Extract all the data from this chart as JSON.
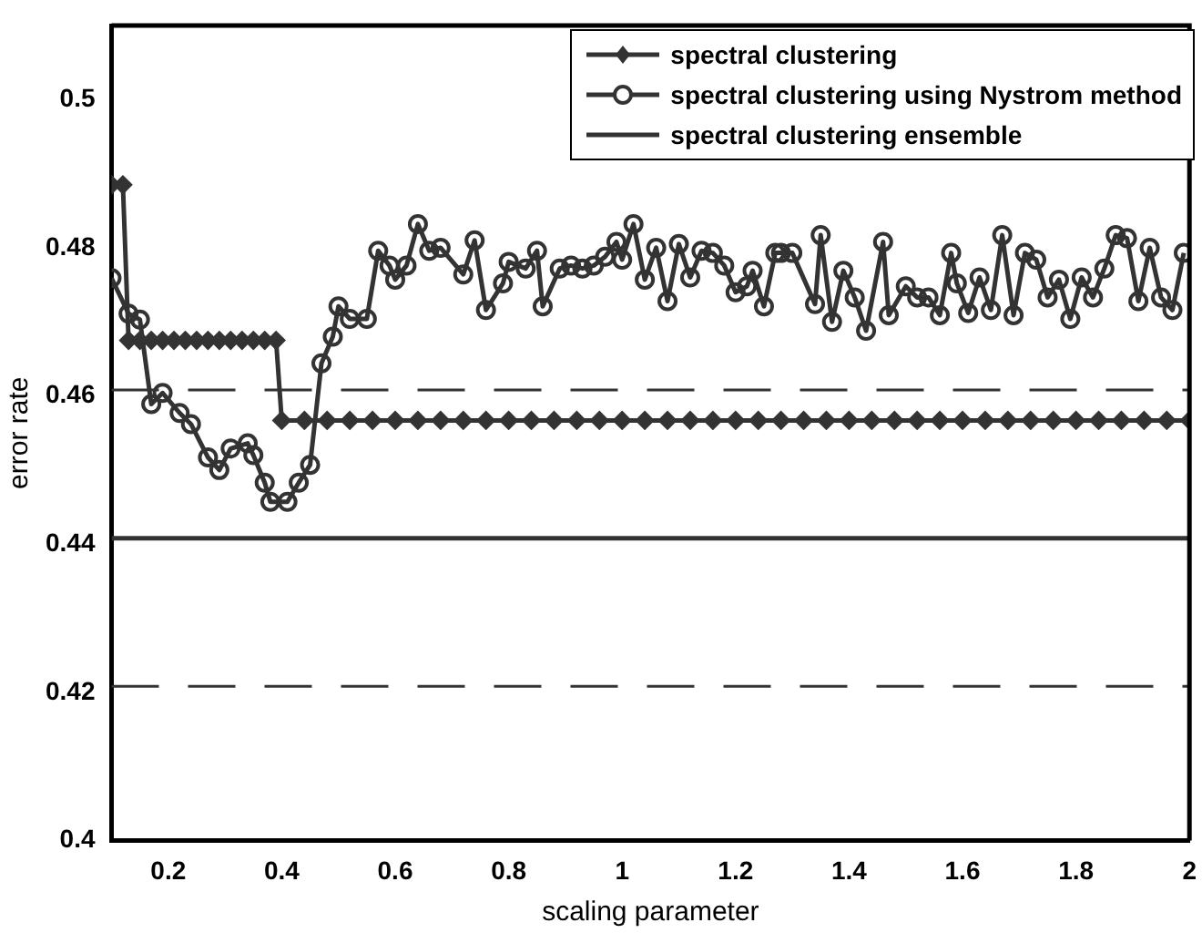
{
  "chart_data": {
    "type": "line",
    "xlabel": "scaling parameter",
    "ylabel": "error rate",
    "xlim": [
      0.1,
      2
    ],
    "xticks": [
      0.2,
      0.4,
      0.6,
      0.8,
      1,
      1.2,
      1.4,
      1.6,
      1.8,
      2
    ],
    "ylim": [
      0.4,
      0.51
    ],
    "yticks": [
      0.4,
      0.42,
      0.44,
      0.46,
      0.48,
      0.5
    ],
    "grid": false,
    "legend": "top right",
    "line_style": "solid",
    "series": [
      {
        "name": "spectral clustering",
        "color": "#333333",
        "marker": "diamond",
        "x": [
          0.1,
          0.12,
          0.13,
          0.15,
          0.17,
          0.19,
          0.21,
          0.23,
          0.25,
          0.27,
          0.29,
          0.31,
          0.33,
          0.35,
          0.37,
          0.39,
          0.4,
          0.44,
          0.48,
          0.52,
          0.56,
          0.6,
          0.64,
          0.68,
          0.72,
          0.76,
          0.8,
          0.84,
          0.88,
          0.92,
          0.96,
          1,
          1.04,
          1.08,
          1.12,
          1.16,
          1.2,
          1.24,
          1.28,
          1.32,
          1.36,
          1.4,
          1.44,
          1.48,
          1.52,
          1.56,
          1.6,
          1.64,
          1.68,
          1.72,
          1.76,
          1.8,
          1.84,
          1.88,
          1.92,
          1.96,
          2
        ],
        "values": [
          0.4885,
          0.4885,
          0.4675,
          0.4675,
          0.4675,
          0.4675,
          0.4675,
          0.4675,
          0.4675,
          0.4675,
          0.4675,
          0.4675,
          0.4675,
          0.4675,
          0.4675,
          0.4675,
          0.4567,
          0.4567,
          0.4567,
          0.4567,
          0.4567,
          0.4567,
          0.4567,
          0.4567,
          0.4567,
          0.4567,
          0.4567,
          0.4567,
          0.4567,
          0.4567,
          0.4567,
          0.4567,
          0.4567,
          0.4567,
          0.4567,
          0.4567,
          0.4567,
          0.4567,
          0.4567,
          0.4567,
          0.4567,
          0.4567,
          0.4567,
          0.4567,
          0.4567,
          0.4567,
          0.4567,
          0.4567,
          0.4567,
          0.4567,
          0.4567,
          0.4567,
          0.4567,
          0.4567,
          0.4567,
          0.4567,
          0.4567
        ]
      },
      {
        "name": "spectral clustering using Nystrom method",
        "color": "#333333",
        "marker": "circle",
        "x": [
          0.1,
          0.13,
          0.15,
          0.17,
          0.19,
          0.22,
          0.24,
          0.27,
          0.29,
          0.31,
          0.34,
          0.35,
          0.37,
          0.38,
          0.41,
          0.43,
          0.45,
          0.47,
          0.49,
          0.5,
          0.52,
          0.55,
          0.57,
          0.59,
          0.6,
          0.62,
          0.64,
          0.66,
          0.68,
          0.72,
          0.74,
          0.76,
          0.79,
          0.8,
          0.83,
          0.85,
          0.86,
          0.89,
          0.91,
          0.93,
          0.95,
          0.97,
          0.99,
          1,
          1.02,
          1.04,
          1.06,
          1.08,
          1.1,
          1.12,
          1.14,
          1.16,
          1.18,
          1.2,
          1.22,
          1.23,
          1.25,
          1.27,
          1.28,
          1.3,
          1.34,
          1.35,
          1.37,
          1.39,
          1.41,
          1.43,
          1.46,
          1.47,
          1.5,
          1.52,
          1.54,
          1.56,
          1.58,
          1.59,
          1.61,
          1.63,
          1.65,
          1.67,
          1.69,
          1.71,
          1.73,
          1.75,
          1.77,
          1.79,
          1.81,
          1.83,
          1.85,
          1.87,
          1.89,
          1.91,
          1.93,
          1.95,
          1.97,
          1.99
        ],
        "values": [
          0.4759,
          0.4711,
          0.4703,
          0.4589,
          0.4604,
          0.4577,
          0.4562,
          0.4517,
          0.45,
          0.4529,
          0.4536,
          0.452,
          0.4483,
          0.4457,
          0.4457,
          0.4483,
          0.4507,
          0.4644,
          0.468,
          0.4721,
          0.4704,
          0.4704,
          0.4796,
          0.4776,
          0.4757,
          0.4776,
          0.4832,
          0.4796,
          0.48,
          0.4764,
          0.481,
          0.4716,
          0.4752,
          0.4781,
          0.4772,
          0.4796,
          0.4721,
          0.4772,
          0.4776,
          0.4772,
          0.4776,
          0.4788,
          0.4808,
          0.4784,
          0.4832,
          0.4757,
          0.48,
          0.4728,
          0.4805,
          0.476,
          0.4796,
          0.4793,
          0.4776,
          0.474,
          0.4748,
          0.4769,
          0.4721,
          0.4793,
          0.4793,
          0.4793,
          0.4724,
          0.4817,
          0.47,
          0.4769,
          0.4733,
          0.4688,
          0.4808,
          0.4709,
          0.4748,
          0.4733,
          0.4733,
          0.4709,
          0.4793,
          0.4752,
          0.4712,
          0.476,
          0.4716,
          0.4817,
          0.4709,
          0.4793,
          0.4784,
          0.4733,
          0.4757,
          0.4704,
          0.476,
          0.4733,
          0.4772,
          0.4817,
          0.4813,
          0.4728,
          0.48,
          0.4733,
          0.4716,
          0.4793
        ]
      },
      {
        "name": "spectral clustering ensemble",
        "color": "#333333",
        "marker": "none",
        "x": [
          0.1,
          2
        ],
        "values": [
          0.4408,
          0.4408
        ]
      }
    ],
    "ref_lines": [
      {
        "axis": "y",
        "value": 0.4608,
        "color": "#333333",
        "line_style": "dashed"
      },
      {
        "axis": "y",
        "value": 0.4208,
        "color": "#333333",
        "line_style": "dashed"
      }
    ]
  }
}
